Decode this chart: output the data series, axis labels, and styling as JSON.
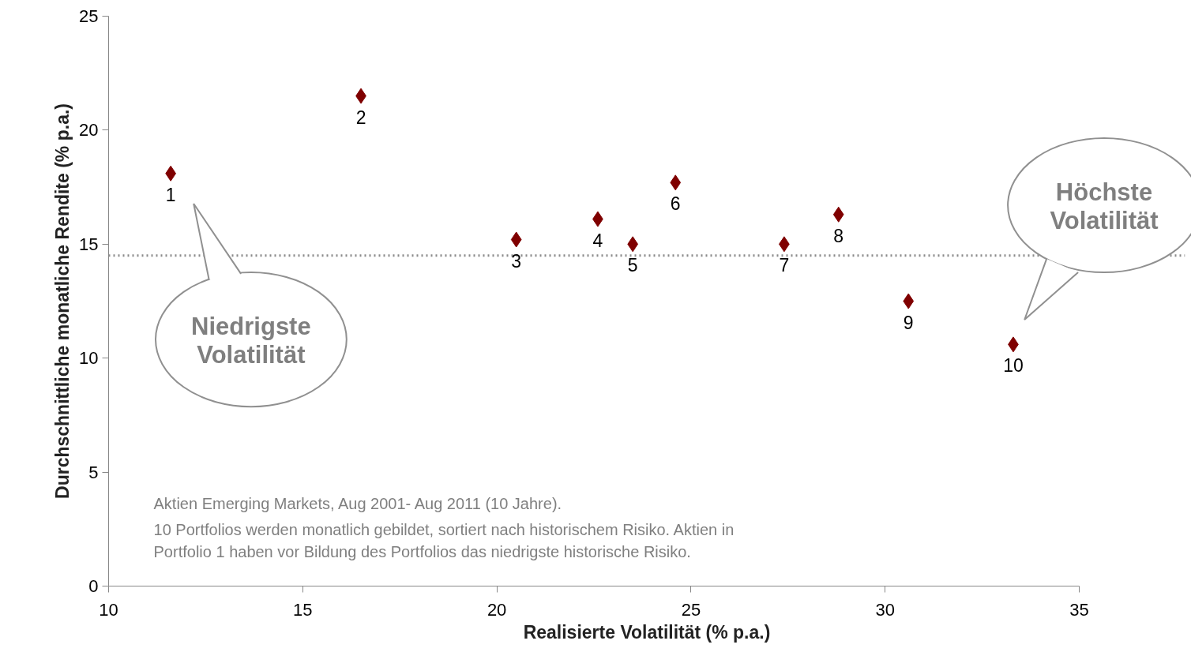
{
  "chart_data": {
    "type": "scatter",
    "xlabel": "Realisierte Volatilität (% p.a.)",
    "ylabel": "Durchschnittliche monatliche Rendite (% p.a.)",
    "x": [
      11.6,
      16.5,
      20.5,
      22.6,
      23.5,
      24.6,
      27.4,
      28.8,
      30.6,
      33.3
    ],
    "series": [
      {
        "color": "#7f0000",
        "values": [
          18.1,
          21.5,
          15.2,
          16.1,
          15.0,
          17.7,
          15.0,
          16.3,
          12.5,
          10.6
        ]
      }
    ],
    "marker": "diamond",
    "xlim": [
      10,
      35
    ],
    "ylim": [
      0,
      25
    ],
    "xticks": [
      10,
      15,
      20,
      25,
      30,
      35
    ],
    "yticks": [
      0,
      5,
      10,
      15,
      20,
      25
    ],
    "grid": false,
    "ref_lines": [
      {
        "axis": "y",
        "value": 14.5,
        "color": "#8c8c8c",
        "line_style": "dotted"
      }
    ],
    "annotations": [
      "Niedrigste Volatilität",
      "Höchste Volatilität",
      "Aktien Emerging Markets, Aug 2001- Aug 2011 (10 Jahre).",
      "10 Portfolios werden monatlich gebildet, sortiert nach historischem Risiko. Aktien in\nPortfolio 1 haben vor Bildung des Portfolios das niedrigste historische Risiko.",
      {
        "text": "1",
        "x": 11.6,
        "y": 18.1
      },
      {
        "text": "2",
        "x": 16.5,
        "y": 21.5
      },
      {
        "text": "3",
        "x": 20.5,
        "y": 15.2
      },
      {
        "text": "4",
        "x": 22.6,
        "y": 16.1
      },
      {
        "text": "5",
        "x": 23.5,
        "y": 15.0
      },
      {
        "text": "6",
        "x": 24.6,
        "y": 17.7
      },
      {
        "text": "7",
        "x": 27.4,
        "y": 15.0
      },
      {
        "text": "8",
        "x": 28.8,
        "y": 16.3
      },
      {
        "text": "9",
        "x": 30.6,
        "y": 12.5
      },
      {
        "text": "10",
        "x": 33.3,
        "y": 10.6
      }
    ]
  }
}
